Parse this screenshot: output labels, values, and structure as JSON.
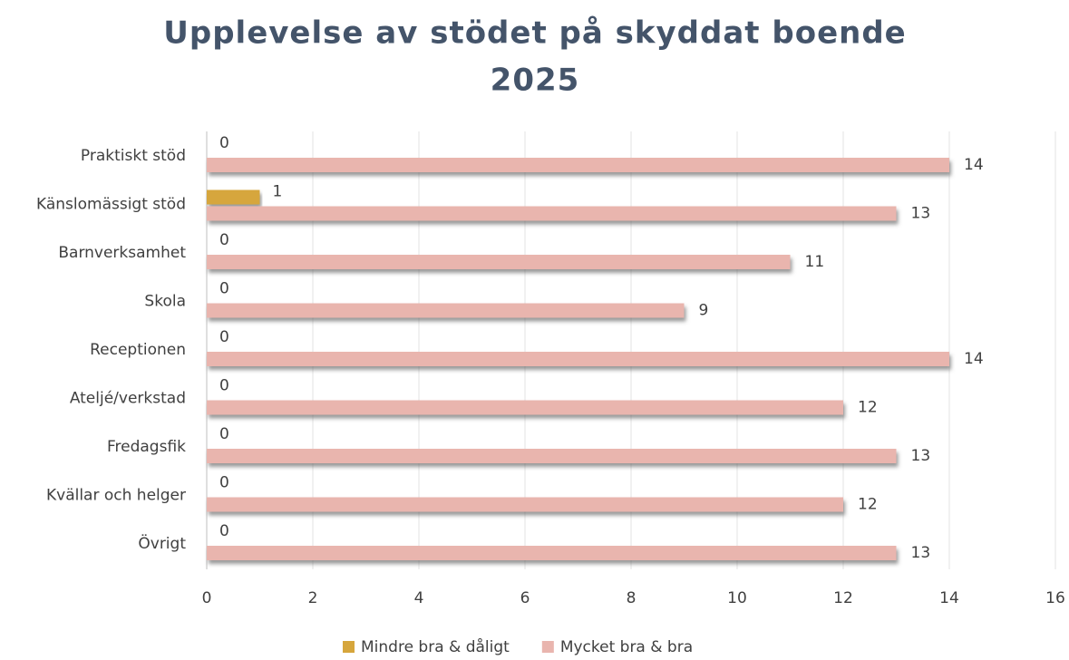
{
  "chart_data": {
    "type": "hbar",
    "title": [
      "Upplevelse av stödet på skyddat boende",
      "2025"
    ],
    "categories": [
      "Praktiskt stöd",
      "Känslomässigt stöd",
      "Barnverksamhet",
      "Skola",
      "Receptionen",
      "Ateljé/verkstad",
      "Fredagsfik",
      "Kvällar och helger",
      "Övrigt"
    ],
    "series": [
      {
        "name": "Mindre bra & dåligt",
        "color": "#d6a63c",
        "values": [
          0,
          1,
          0,
          0,
          0,
          0,
          0,
          0,
          0
        ]
      },
      {
        "name": "Mycket bra & bra",
        "color": "#e9b5ae",
        "values": [
          14,
          13,
          11,
          9,
          14,
          12,
          13,
          12,
          13
        ]
      }
    ],
    "xlim": [
      0,
      16
    ],
    "xticks": [
      0,
      2,
      4,
      6,
      8,
      10,
      12,
      14,
      16
    ],
    "grid": true,
    "legend": "bottom"
  }
}
